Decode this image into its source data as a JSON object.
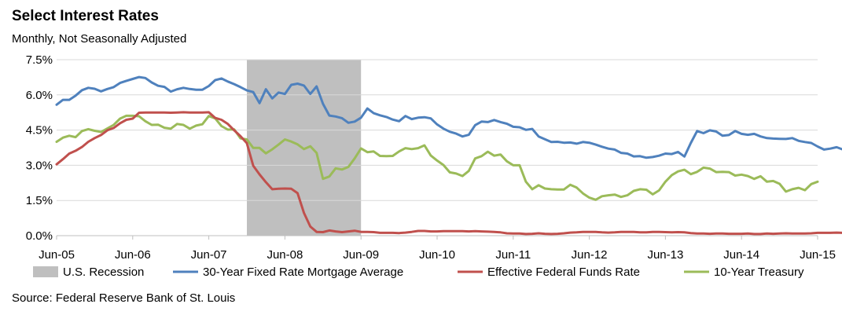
{
  "header": {
    "title": "Select Interest Rates",
    "subtitle": "Monthly, Not Seasonally Adjusted"
  },
  "footer": {
    "source": "Source: Federal Reserve Bank of St. Louis"
  },
  "chart_data": {
    "type": "line",
    "title": "Select Interest Rates",
    "subtitle": "Monthly, Not Seasonally Adjusted",
    "xlabel": "",
    "ylabel": "",
    "x_start": "Jun-05",
    "x_end": "Jun-15",
    "x_ticks": [
      "Jun-05",
      "Jun-06",
      "Jun-07",
      "Jun-08",
      "Jun-09",
      "Jun-10",
      "Jun-11",
      "Jun-12",
      "Jun-13",
      "Jun-14",
      "Jun-15"
    ],
    "ylim": [
      0,
      7.5
    ],
    "y_ticks": [
      "0.0%",
      "1.5%",
      "3.0%",
      "4.5%",
      "6.0%",
      "7.5%"
    ],
    "grid": "horizontal",
    "legend_position": "bottom",
    "recession": {
      "name": "U.S. Recession",
      "start": "Dec-07",
      "end": "Jun-09",
      "color": "#bfbfbf"
    },
    "series": [
      {
        "name": "30-Year Fixed Rate Mortgage Average",
        "color": "#4f81bd",
        "values": [
          5.58,
          5.79,
          5.79,
          5.97,
          6.2,
          6.3,
          6.26,
          6.15,
          6.25,
          6.33,
          6.51,
          6.6,
          6.68,
          6.76,
          6.72,
          6.53,
          6.39,
          6.34,
          6.14,
          6.24,
          6.3,
          6.25,
          6.22,
          6.22,
          6.38,
          6.63,
          6.7,
          6.57,
          6.46,
          6.33,
          6.19,
          6.12,
          5.65,
          6.24,
          5.85,
          6.1,
          6.04,
          6.43,
          6.48,
          6.4,
          6.04,
          6.36,
          5.62,
          5.12,
          5.08,
          5.01,
          4.81,
          4.86,
          5.03,
          5.42,
          5.22,
          5.13,
          5.06,
          4.95,
          4.88,
          5.1,
          4.97,
          5.03,
          5.05,
          5.0,
          4.74,
          4.56,
          4.43,
          4.35,
          4.23,
          4.3,
          4.71,
          4.86,
          4.84,
          4.93,
          4.84,
          4.77,
          4.64,
          4.62,
          4.51,
          4.55,
          4.23,
          4.11,
          3.99,
          4.0,
          3.96,
          3.97,
          3.92,
          3.99,
          3.96,
          3.88,
          3.79,
          3.71,
          3.67,
          3.53,
          3.5,
          3.38,
          3.39,
          3.32,
          3.35,
          3.41,
          3.5,
          3.48,
          3.57,
          3.37,
          3.95,
          4.46,
          4.37,
          4.49,
          4.44,
          4.26,
          4.29,
          4.46,
          4.34,
          4.3,
          4.34,
          4.23,
          4.16,
          4.14,
          4.13,
          4.12,
          4.16,
          4.04,
          3.99,
          3.95,
          3.8,
          3.67,
          3.71,
          3.77,
          3.67,
          3.84,
          4.0
        ]
      },
      {
        "name": "Effective Federal Funds Rate",
        "color": "#c0504d",
        "values": [
          3.04,
          3.26,
          3.5,
          3.62,
          3.78,
          4.0,
          4.16,
          4.29,
          4.49,
          4.59,
          4.79,
          4.94,
          4.99,
          5.24,
          5.25,
          5.25,
          5.25,
          5.25,
          5.24,
          5.25,
          5.26,
          5.25,
          5.25,
          5.25,
          5.26,
          5.02,
          4.94,
          4.76,
          4.49,
          4.24,
          3.94,
          2.98,
          2.61,
          2.28,
          1.98,
          2.0,
          2.01,
          2.0,
          1.81,
          0.97,
          0.39,
          0.16,
          0.15,
          0.22,
          0.18,
          0.15,
          0.18,
          0.21,
          0.16,
          0.16,
          0.15,
          0.12,
          0.12,
          0.12,
          0.11,
          0.13,
          0.16,
          0.2,
          0.2,
          0.18,
          0.18,
          0.19,
          0.19,
          0.19,
          0.19,
          0.18,
          0.19,
          0.18,
          0.17,
          0.16,
          0.14,
          0.1,
          0.09,
          0.09,
          0.07,
          0.08,
          0.1,
          0.08,
          0.07,
          0.08,
          0.1,
          0.13,
          0.14,
          0.16,
          0.16,
          0.16,
          0.14,
          0.13,
          0.14,
          0.16,
          0.16,
          0.16,
          0.14,
          0.14,
          0.16,
          0.16,
          0.15,
          0.14,
          0.15,
          0.14,
          0.11,
          0.09,
          0.09,
          0.08,
          0.09,
          0.09,
          0.08,
          0.08,
          0.08,
          0.09,
          0.07,
          0.07,
          0.09,
          0.08,
          0.09,
          0.1,
          0.09,
          0.09,
          0.09,
          0.1,
          0.12,
          0.12,
          0.12,
          0.13,
          0.12,
          0.12,
          0.12
        ]
      },
      {
        "name": "10-Year Treasury",
        "color": "#9bbb59",
        "values": [
          4.0,
          4.18,
          4.26,
          4.2,
          4.46,
          4.54,
          4.47,
          4.42,
          4.57,
          4.72,
          4.99,
          5.11,
          5.11,
          5.09,
          4.88,
          4.72,
          4.73,
          4.6,
          4.56,
          4.76,
          4.72,
          4.56,
          4.69,
          4.75,
          5.1,
          5.0,
          4.67,
          4.52,
          4.53,
          4.15,
          4.1,
          3.74,
          3.74,
          3.51,
          3.68,
          3.88,
          4.1,
          4.01,
          3.89,
          3.69,
          3.81,
          3.53,
          2.42,
          2.52,
          2.87,
          2.82,
          2.93,
          3.29,
          3.72,
          3.56,
          3.59,
          3.4,
          3.39,
          3.4,
          3.59,
          3.73,
          3.69,
          3.73,
          3.85,
          3.42,
          3.2,
          3.01,
          2.7,
          2.65,
          2.54,
          2.76,
          3.29,
          3.39,
          3.58,
          3.41,
          3.46,
          3.17,
          3.0,
          3.0,
          2.3,
          1.98,
          2.15,
          2.01,
          1.98,
          1.97,
          1.97,
          2.17,
          2.05,
          1.8,
          1.62,
          1.53,
          1.68,
          1.72,
          1.75,
          1.65,
          1.72,
          1.91,
          1.98,
          1.96,
          1.76,
          1.93,
          2.3,
          2.58,
          2.74,
          2.81,
          2.62,
          2.72,
          2.9,
          2.86,
          2.71,
          2.72,
          2.71,
          2.56,
          2.6,
          2.54,
          2.42,
          2.53,
          2.3,
          2.33,
          2.21,
          1.88,
          1.98,
          2.04,
          1.94,
          2.2,
          2.3
        ]
      }
    ]
  }
}
